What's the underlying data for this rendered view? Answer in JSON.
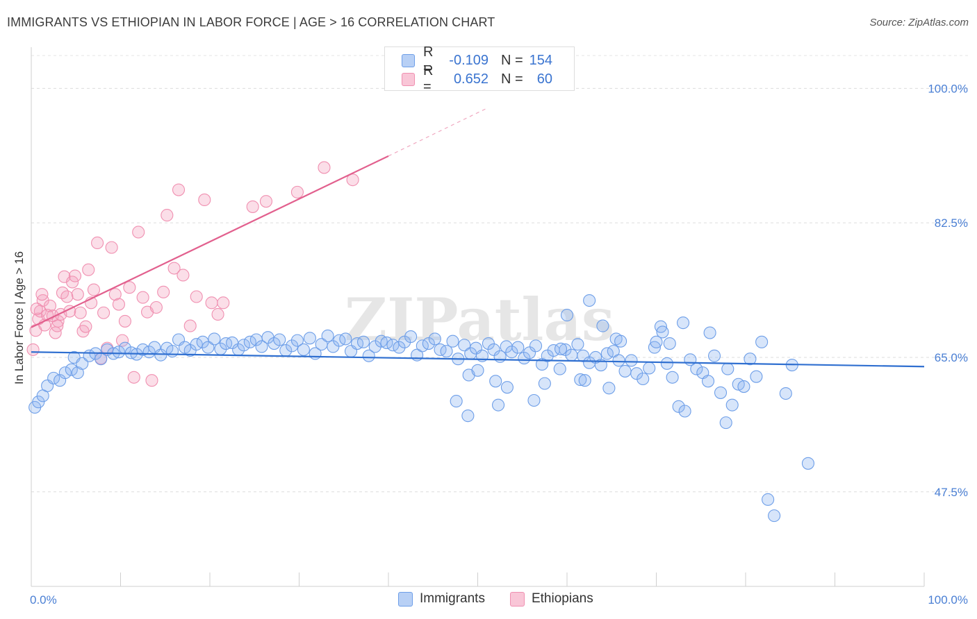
{
  "title": "IMMIGRANTS VS ETHIOPIAN IN LABOR FORCE | AGE > 16 CORRELATION CHART",
  "source": "Source: ZipAtlas.com",
  "watermark": "ZIPatlas",
  "legend": {
    "rows": [
      {
        "r_label": "R =",
        "r_value": "-0.109",
        "n_label": "N =",
        "n_value": "154"
      },
      {
        "r_label": "R =",
        "r_value": "0.652",
        "n_label": "N =",
        "n_value": "60"
      }
    ]
  },
  "chart_data": {
    "type": "scatter",
    "title": "IMMIGRANTS VS ETHIOPIAN IN LABOR FORCE | AGE > 16 CORRELATION CHART",
    "xlabel": "",
    "ylabel": "In Labor Force | Age > 16",
    "xlim": [
      0,
      100
    ],
    "ylim": [
      35.2,
      105.0
    ],
    "x_tick_labels": [
      "0.0%",
      "100.0%"
    ],
    "y_ticks": [
      47.5,
      65.0,
      82.5,
      100.0
    ],
    "y_tick_labels": [
      "47.5%",
      "65.0%",
      "82.5%",
      "100.0%"
    ],
    "grid": true,
    "legend_position": "top-center",
    "colors": {
      "immigrants": "#6d9ee8",
      "ethiopians": "#f08fb0",
      "immigrants_line": "#2f6fd0",
      "ethiopians_line": "#e2608e"
    },
    "series": [
      {
        "name": "Immigrants",
        "r": -0.109,
        "n": 154,
        "trend": {
          "x": [
            0,
            100
          ],
          "y": [
            65.7,
            63.8
          ]
        },
        "points": [
          [
            0.4,
            58.5
          ],
          [
            0.8,
            59.2
          ],
          [
            1.3,
            60.0
          ],
          [
            1.8,
            61.3
          ],
          [
            2.5,
            62.3
          ],
          [
            3.2,
            62.0
          ],
          [
            3.8,
            63.0
          ],
          [
            4.5,
            63.4
          ],
          [
            5.2,
            63.0
          ],
          [
            4.8,
            65.0
          ],
          [
            5.7,
            64.2
          ],
          [
            6.5,
            65.2
          ],
          [
            7.2,
            65.5
          ],
          [
            7.8,
            64.8
          ],
          [
            8.5,
            66.0
          ],
          [
            9.2,
            65.5
          ],
          [
            9.8,
            65.7
          ],
          [
            10.5,
            66.2
          ],
          [
            11.2,
            65.6
          ],
          [
            11.8,
            65.4
          ],
          [
            12.5,
            66.0
          ],
          [
            13.2,
            65.7
          ],
          [
            13.8,
            66.3
          ],
          [
            14.5,
            65.3
          ],
          [
            15.2,
            66.2
          ],
          [
            15.8,
            65.8
          ],
          [
            16.5,
            67.3
          ],
          [
            17.2,
            66.3
          ],
          [
            17.8,
            65.9
          ],
          [
            18.5,
            66.7
          ],
          [
            19.2,
            67.0
          ],
          [
            19.8,
            66.3
          ],
          [
            20.5,
            67.4
          ],
          [
            21.2,
            66.1
          ],
          [
            21.8,
            66.8
          ],
          [
            22.5,
            66.9
          ],
          [
            23.2,
            66.0
          ],
          [
            23.8,
            66.6
          ],
          [
            24.5,
            67.0
          ],
          [
            25.2,
            67.3
          ],
          [
            25.8,
            66.4
          ],
          [
            26.5,
            67.6
          ],
          [
            27.2,
            66.8
          ],
          [
            27.8,
            67.3
          ],
          [
            28.5,
            65.9
          ],
          [
            29.2,
            66.5
          ],
          [
            29.8,
            67.2
          ],
          [
            30.5,
            66.0
          ],
          [
            31.2,
            67.5
          ],
          [
            31.8,
            65.5
          ],
          [
            32.5,
            66.7
          ],
          [
            33.2,
            67.8
          ],
          [
            33.8,
            66.4
          ],
          [
            34.5,
            67.2
          ],
          [
            35.2,
            67.4
          ],
          [
            35.8,
            65.8
          ],
          [
            36.5,
            66.8
          ],
          [
            37.2,
            67.0
          ],
          [
            37.8,
            65.2
          ],
          [
            38.5,
            66.4
          ],
          [
            39.2,
            67.1
          ],
          [
            39.8,
            66.9
          ],
          [
            40.5,
            66.6
          ],
          [
            41.2,
            66.3
          ],
          [
            41.8,
            67.0
          ],
          [
            42.5,
            67.7
          ],
          [
            43.2,
            65.3
          ],
          [
            43.8,
            66.5
          ],
          [
            44.5,
            66.8
          ],
          [
            45.2,
            67.4
          ],
          [
            45.8,
            66.0
          ],
          [
            46.5,
            65.8
          ],
          [
            47.2,
            67.1
          ],
          [
            47.8,
            64.8
          ],
          [
            48.5,
            66.6
          ],
          [
            49.2,
            65.5
          ],
          [
            49.8,
            66.2
          ],
          [
            50.5,
            65.2
          ],
          [
            51.2,
            66.8
          ],
          [
            51.8,
            66.0
          ],
          [
            52.5,
            65.1
          ],
          [
            53.2,
            66.4
          ],
          [
            53.8,
            65.7
          ],
          [
            54.5,
            66.3
          ],
          [
            55.2,
            64.9
          ],
          [
            55.8,
            65.6
          ],
          [
            56.5,
            66.5
          ],
          [
            57.2,
            64.1
          ],
          [
            57.8,
            65.2
          ],
          [
            58.5,
            65.9
          ],
          [
            59.2,
            63.5
          ],
          [
            59.8,
            66.0
          ],
          [
            60.5,
            65.3
          ],
          [
            61.2,
            66.7
          ],
          [
            61.8,
            65.2
          ],
          [
            62.5,
            64.3
          ],
          [
            63.2,
            65.0
          ],
          [
            63.8,
            64.0
          ],
          [
            64.5,
            65.5
          ],
          [
            65.2,
            65.8
          ],
          [
            65.8,
            64.6
          ],
          [
            66.5,
            63.2
          ],
          [
            67.2,
            64.6
          ],
          [
            67.8,
            62.9
          ],
          [
            68.5,
            62.2
          ],
          [
            69.2,
            63.6
          ],
          [
            69.8,
            66.3
          ],
          [
            70.5,
            69.0
          ],
          [
            71.2,
            64.2
          ],
          [
            71.8,
            62.4
          ],
          [
            72.5,
            58.6
          ],
          [
            73.2,
            58.0
          ],
          [
            73.8,
            64.7
          ],
          [
            74.5,
            63.5
          ],
          [
            75.2,
            63.0
          ],
          [
            75.8,
            61.9
          ],
          [
            76.5,
            65.2
          ],
          [
            77.2,
            60.4
          ],
          [
            77.8,
            56.5
          ],
          [
            78.5,
            58.8
          ],
          [
            79.2,
            61.5
          ],
          [
            79.8,
            61.2
          ],
          [
            80.5,
            64.8
          ],
          [
            81.2,
            62.5
          ],
          [
            81.8,
            67.0
          ],
          [
            82.5,
            46.5
          ],
          [
            83.2,
            44.4
          ],
          [
            84.5,
            60.3
          ],
          [
            85.2,
            64.0
          ],
          [
            87.0,
            51.2
          ],
          [
            65.5,
            67.4
          ],
          [
            70.7,
            68.3
          ],
          [
            71.5,
            66.8
          ],
          [
            73.0,
            69.5
          ],
          [
            76.0,
            68.2
          ],
          [
            78.0,
            63.5
          ],
          [
            60.0,
            70.5
          ],
          [
            61.5,
            62.1
          ],
          [
            62.0,
            62.0
          ],
          [
            59.3,
            66.1
          ],
          [
            64.0,
            69.1
          ],
          [
            52.0,
            61.9
          ],
          [
            53.3,
            61.1
          ],
          [
            57.5,
            61.6
          ],
          [
            56.3,
            59.4
          ],
          [
            52.3,
            58.8
          ],
          [
            49.0,
            62.7
          ],
          [
            47.6,
            59.3
          ],
          [
            50.0,
            63.3
          ],
          [
            48.9,
            57.4
          ],
          [
            62.5,
            72.4
          ],
          [
            64.7,
            61.0
          ],
          [
            70.0,
            67.0
          ],
          [
            66.0,
            67.1
          ]
        ]
      },
      {
        "name": "Ethiopians",
        "r": 0.652,
        "n": 60,
        "trend": {
          "x": [
            0,
            40
          ],
          "y": [
            68.9,
            91.2
          ]
        },
        "trend_extension": {
          "x": [
            40,
            51
          ],
          "y": [
            91.2,
            97.4
          ]
        },
        "points": [
          [
            0.2,
            66.0
          ],
          [
            0.5,
            68.5
          ],
          [
            0.8,
            70.0
          ],
          [
            1.0,
            71.0
          ],
          [
            1.3,
            72.4
          ],
          [
            1.5,
            69.2
          ],
          [
            1.8,
            70.5
          ],
          [
            2.1,
            71.7
          ],
          [
            2.4,
            70.4
          ],
          [
            2.7,
            68.2
          ],
          [
            3.0,
            69.7
          ],
          [
            3.3,
            70.6
          ],
          [
            3.5,
            73.4
          ],
          [
            3.7,
            75.5
          ],
          [
            4.0,
            72.9
          ],
          [
            4.3,
            71.0
          ],
          [
            4.6,
            74.8
          ],
          [
            4.9,
            75.6
          ],
          [
            5.2,
            73.2
          ],
          [
            5.5,
            70.8
          ],
          [
            5.8,
            68.4
          ],
          [
            6.1,
            69.0
          ],
          [
            6.4,
            76.4
          ],
          [
            6.7,
            72.1
          ],
          [
            7.0,
            73.8
          ],
          [
            7.4,
            79.9
          ],
          [
            7.8,
            64.9
          ],
          [
            8.1,
            70.8
          ],
          [
            8.5,
            66.2
          ],
          [
            9.0,
            79.3
          ],
          [
            9.4,
            73.2
          ],
          [
            9.8,
            71.9
          ],
          [
            10.2,
            67.2
          ],
          [
            10.5,
            69.7
          ],
          [
            11.0,
            74.1
          ],
          [
            11.5,
            62.4
          ],
          [
            12.0,
            81.3
          ],
          [
            12.5,
            72.8
          ],
          [
            13.0,
            70.9
          ],
          [
            13.5,
            62.0
          ],
          [
            14.0,
            71.5
          ],
          [
            14.8,
            73.5
          ],
          [
            15.2,
            83.5
          ],
          [
            16.0,
            76.6
          ],
          [
            16.5,
            86.8
          ],
          [
            17.0,
            75.7
          ],
          [
            17.8,
            69.1
          ],
          [
            18.5,
            72.9
          ],
          [
            19.4,
            85.5
          ],
          [
            20.2,
            72.1
          ],
          [
            20.9,
            70.6
          ],
          [
            21.5,
            72.1
          ],
          [
            24.8,
            84.6
          ],
          [
            26.3,
            85.3
          ],
          [
            29.8,
            86.5
          ],
          [
            32.8,
            89.7
          ],
          [
            36.0,
            88.1
          ],
          [
            0.6,
            71.3
          ],
          [
            1.2,
            73.2
          ],
          [
            2.9,
            69.1
          ]
        ]
      }
    ]
  }
}
